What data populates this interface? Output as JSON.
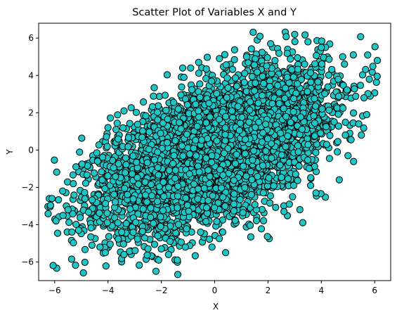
{
  "chart_data": {
    "type": "scatter",
    "title": "Scatter Plot of Variables X and Y",
    "xlabel": "X",
    "ylabel": "Y",
    "xlim": [
      -6.6,
      6.6
    ],
    "ylim": [
      -7.0,
      6.8
    ],
    "xticks": [
      -6,
      -4,
      -2,
      0,
      2,
      4,
      6
    ],
    "yticks": [
      -6,
      -4,
      -2,
      0,
      2,
      4,
      6
    ],
    "grid": false,
    "marker_color": "#17becf",
    "marker_face": "#1fc6c6",
    "marker_edge": "#000000",
    "series": [
      {
        "sample_points": [
          [
            -6.2,
            -2.6
          ],
          [
            -6.1,
            -2.6
          ],
          [
            -5.95,
            -3.8
          ],
          [
            -5.7,
            -2.2
          ],
          [
            -5.5,
            -3.2
          ],
          [
            -5.35,
            -4.4
          ],
          [
            -5.2,
            -0.9
          ],
          [
            -5.1,
            -4.3
          ],
          [
            -4.6,
            -5.1
          ],
          [
            -4.3,
            -5.2
          ],
          [
            -4.1,
            -5.5
          ],
          [
            -4.0,
            1.2
          ],
          [
            -3.7,
            1.1
          ],
          [
            -3.4,
            -5.6
          ],
          [
            -3.4,
            2.1
          ],
          [
            -2.5,
            -5.3
          ],
          [
            -2.1,
            -5.9
          ],
          [
            -2.2,
            -6.5
          ],
          [
            -2.0,
            -5.3
          ],
          [
            -1.4,
            -5.9
          ],
          [
            -1.2,
            4.4
          ],
          [
            -1.1,
            -5.2
          ],
          [
            -0.9,
            4.4
          ],
          [
            -0.6,
            4.7
          ],
          [
            -0.1,
            -5.2
          ],
          [
            0.3,
            -4.4
          ],
          [
            1.2,
            5.0
          ],
          [
            1.6,
            5.9
          ],
          [
            1.7,
            6.1
          ],
          [
            2.1,
            5.7
          ],
          [
            2.6,
            -3.3
          ],
          [
            2.8,
            -2.9
          ],
          [
            3.0,
            6.2
          ],
          [
            3.5,
            5.8
          ],
          [
            3.8,
            -2.3
          ],
          [
            4.0,
            5.5
          ],
          [
            4.2,
            0.3
          ],
          [
            4.8,
            5.0
          ],
          [
            4.9,
            0.8
          ],
          [
            5.0,
            -0.3
          ],
          [
            5.2,
            5.1
          ],
          [
            5.4,
            1.4
          ],
          [
            5.6,
            2.8
          ],
          [
            5.7,
            1.9
          ],
          [
            5.8,
            3.8
          ],
          [
            6.1,
            4.8
          ],
          [
            5.5,
            0.8
          ],
          [
            4.6,
            -0.1
          ],
          [
            3.6,
            -1.9
          ],
          [
            -5.3,
            -1.8
          ]
        ],
        "cloud": {
          "n": 5600,
          "mean": [
            0.0,
            0.0
          ],
          "std": [
            2.0,
            2.0
          ],
          "correlation": 0.55
        }
      }
    ]
  }
}
